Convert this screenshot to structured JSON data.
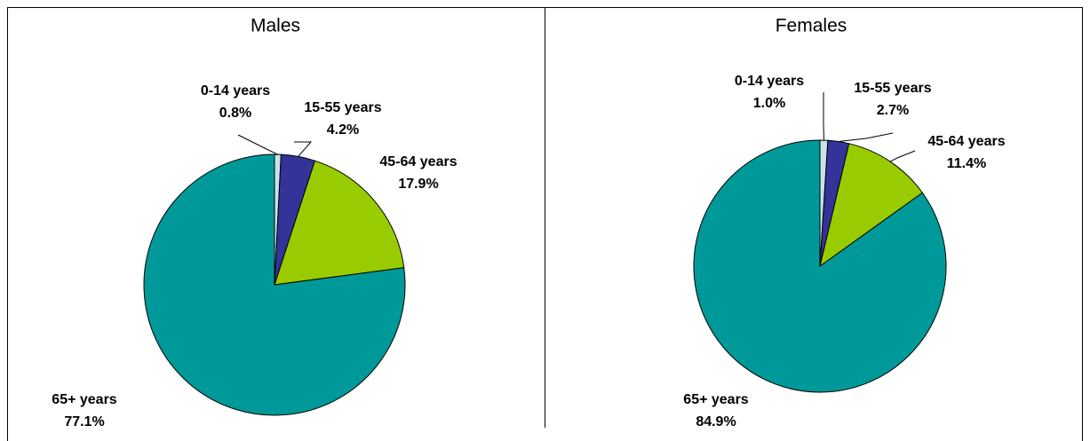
{
  "chart_data": [
    {
      "type": "pie",
      "title": "Males",
      "categories": [
        "0-14 years",
        "15-55 years",
        "45-64 years",
        "65+ years"
      ],
      "values": [
        0.8,
        4.2,
        17.9,
        77.1
      ],
      "value_labels": [
        "0.8%",
        "4.2%",
        "17.9%",
        "77.1%"
      ],
      "colors": [
        "#c5e3ea",
        "#333399",
        "#99cc00",
        "#009999"
      ]
    },
    {
      "type": "pie",
      "title": "Females",
      "categories": [
        "0-14 years",
        "15-55 years",
        "45-64 years",
        "65+ years"
      ],
      "values": [
        1.0,
        2.7,
        11.4,
        84.9
      ],
      "value_labels": [
        "1.0%",
        "2.7%",
        "11.4%",
        "84.9%"
      ],
      "colors": [
        "#c5e3ea",
        "#333399",
        "#99cc00",
        "#009999"
      ]
    }
  ]
}
